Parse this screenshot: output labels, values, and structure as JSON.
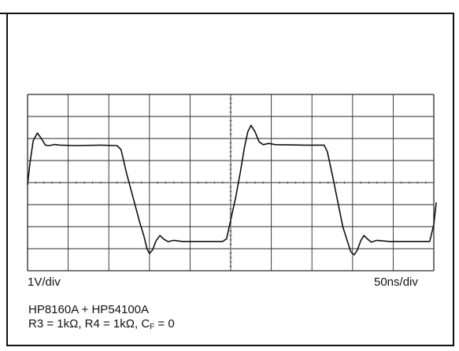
{
  "chart_data": {
    "type": "line",
    "divisions": {
      "x": 10,
      "y": 8
    },
    "y_scale_label": "1V/div",
    "x_scale_label": "50ns/div",
    "x_unit": "ns",
    "y_unit": "V",
    "xlim": [
      0,
      500
    ],
    "ylim": [
      0,
      8
    ],
    "grid": true,
    "series": [
      {
        "values_note_units": "x in ns, y in divisions from bottom",
        "points": [
          [
            0,
            3.9
          ],
          [
            3,
            4.9
          ],
          [
            7,
            5.9
          ],
          [
            12,
            6.25
          ],
          [
            17,
            6.0
          ],
          [
            22,
            5.7
          ],
          [
            27,
            5.68
          ],
          [
            33,
            5.73
          ],
          [
            40,
            5.7
          ],
          [
            60,
            5.68
          ],
          [
            90,
            5.7
          ],
          [
            110,
            5.68
          ],
          [
            115,
            5.5
          ],
          [
            122,
            4.4
          ],
          [
            130,
            3.3
          ],
          [
            138,
            2.2
          ],
          [
            143,
            1.6
          ],
          [
            147,
            1.0
          ],
          [
            150,
            0.78
          ],
          [
            154,
            0.95
          ],
          [
            158,
            1.35
          ],
          [
            163,
            1.6
          ],
          [
            168,
            1.42
          ],
          [
            173,
            1.32
          ],
          [
            180,
            1.38
          ],
          [
            190,
            1.33
          ],
          [
            220,
            1.33
          ],
          [
            240,
            1.33
          ],
          [
            245,
            1.45
          ],
          [
            250,
            2.3
          ],
          [
            256,
            3.3
          ],
          [
            262,
            4.5
          ],
          [
            267,
            5.6
          ],
          [
            271,
            6.3
          ],
          [
            275,
            6.6
          ],
          [
            280,
            6.3
          ],
          [
            285,
            5.85
          ],
          [
            290,
            5.72
          ],
          [
            297,
            5.78
          ],
          [
            305,
            5.72
          ],
          [
            340,
            5.7
          ],
          [
            365,
            5.7
          ],
          [
            369,
            5.4
          ],
          [
            376,
            4.2
          ],
          [
            382,
            3.1
          ],
          [
            388,
            2.0
          ],
          [
            394,
            1.3
          ],
          [
            398,
            0.85
          ],
          [
            402,
            0.72
          ],
          [
            406,
            0.95
          ],
          [
            410,
            1.35
          ],
          [
            414,
            1.6
          ],
          [
            418,
            1.45
          ],
          [
            423,
            1.3
          ],
          [
            430,
            1.38
          ],
          [
            445,
            1.33
          ],
          [
            495,
            1.33
          ],
          [
            500,
            2.1
          ],
          [
            503,
            3.1
          ]
        ]
      }
    ]
  },
  "captions": {
    "line1": "HP8160A + HP54100A",
    "line2_a": "R3 = 1kΩ, R4 = 1kΩ, C",
    "line2_sub": "F",
    "line2_b": " = 0"
  },
  "colors": {
    "ink": "#111111",
    "grid": "#2a2a2a",
    "dots": "#555555"
  }
}
